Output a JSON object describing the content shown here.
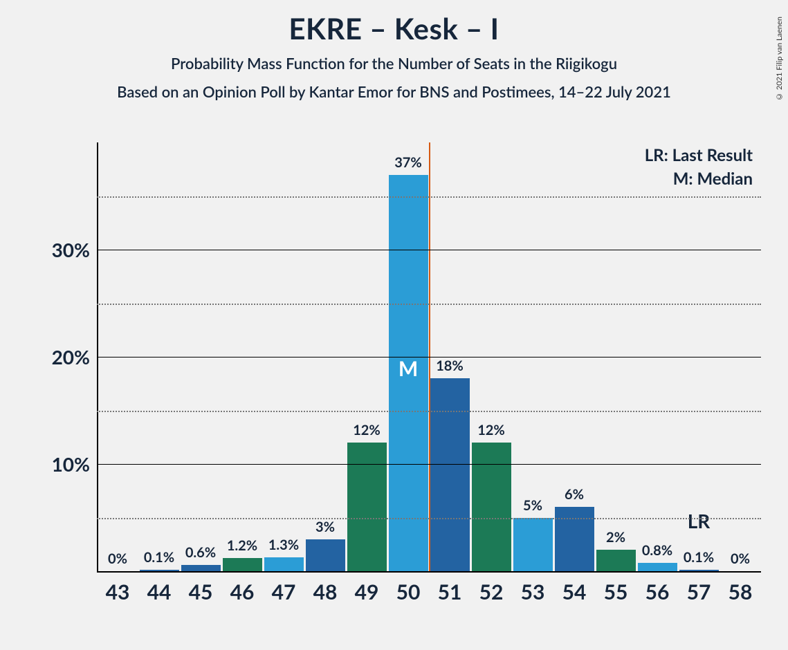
{
  "copyright": "© 2021 Filip van Laenen",
  "title": "EKRE – Kesk – I",
  "subtitle1": "Probability Mass Function for the Number of Seats in the Riigikogu",
  "subtitle2": "Based on an Opinion Poll by Kantar Emor for BNS and Postimees, 14–22 July 2021",
  "legend": {
    "lr": "LR: Last Result",
    "m": "M: Median"
  },
  "chart": {
    "type": "bar",
    "background_color": "#f1f1f1",
    "axis_color": "#000000",
    "grid_major_color": "#000000",
    "grid_minor_color": "#777777",
    "text_color": "#16263b",
    "majority_line_color": "#d65a12",
    "majority_at": 50.5,
    "median_at": 50,
    "median_label": "M",
    "lr_at": 57,
    "lr_label": "LR",
    "ylim": [
      0,
      40
    ],
    "ytick_major": [
      10,
      20,
      30
    ],
    "ytick_minor": [
      5,
      15,
      25,
      35
    ],
    "ytick_labels": [
      "10%",
      "20%",
      "30%"
    ],
    "bar_width_ratio": 0.95,
    "label_fontsize": 20,
    "axis_fontsize": 28,
    "colors": {
      "c0": "#2b9dd6",
      "c1": "#2363a2",
      "c2": "#1c7a56"
    },
    "bars": [
      {
        "x": "43",
        "v": 0,
        "label": "0%",
        "color": "c0"
      },
      {
        "x": "44",
        "v": 0.1,
        "label": "0.1%",
        "color": "c1"
      },
      {
        "x": "45",
        "v": 0.6,
        "label": "0.6%",
        "color": "c1"
      },
      {
        "x": "46",
        "v": 1.2,
        "label": "1.2%",
        "color": "c2"
      },
      {
        "x": "47",
        "v": 1.3,
        "label": "1.3%",
        "color": "c0"
      },
      {
        "x": "48",
        "v": 3,
        "label": "3%",
        "color": "c1"
      },
      {
        "x": "49",
        "v": 12,
        "label": "12%",
        "color": "c2"
      },
      {
        "x": "50",
        "v": 37,
        "label": "37%",
        "color": "c0"
      },
      {
        "x": "51",
        "v": 18,
        "label": "18%",
        "color": "c1"
      },
      {
        "x": "52",
        "v": 12,
        "label": "12%",
        "color": "c2"
      },
      {
        "x": "53",
        "v": 5,
        "label": "5%",
        "color": "c0"
      },
      {
        "x": "54",
        "v": 6,
        "label": "6%",
        "color": "c1"
      },
      {
        "x": "55",
        "v": 2,
        "label": "2%",
        "color": "c2"
      },
      {
        "x": "56",
        "v": 0.8,
        "label": "0.8%",
        "color": "c0"
      },
      {
        "x": "57",
        "v": 0.1,
        "label": "0.1%",
        "color": "c1"
      },
      {
        "x": "58",
        "v": 0,
        "label": "0%",
        "color": "c2"
      }
    ]
  }
}
